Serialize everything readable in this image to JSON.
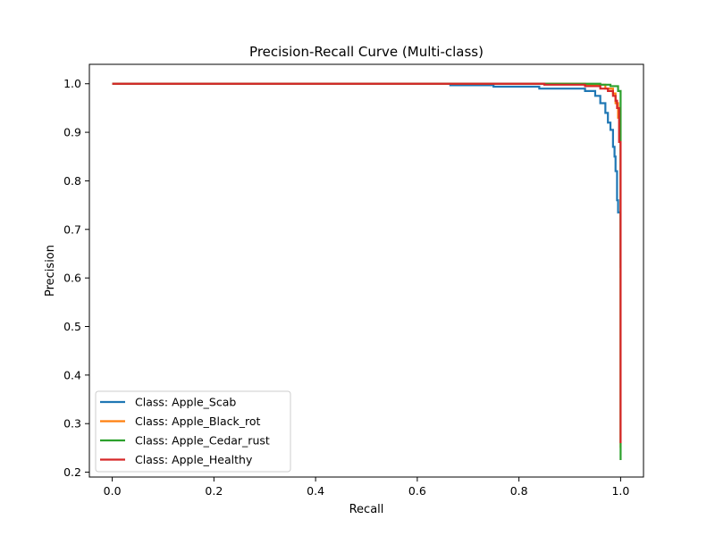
{
  "chart_data": {
    "type": "line",
    "title": "Precision-Recall Curve (Multi-class)",
    "xlabel": "Recall",
    "ylabel": "Precision",
    "xlim": [
      -0.045,
      1.045
    ],
    "ylim": [
      0.19,
      1.04
    ],
    "xticks": [
      0.0,
      0.2,
      0.4,
      0.6,
      0.8,
      1.0
    ],
    "xtick_labels": [
      "0.0",
      "0.2",
      "0.4",
      "0.6",
      "0.8",
      "1.0"
    ],
    "yticks": [
      0.2,
      0.3,
      0.4,
      0.5,
      0.6,
      0.7,
      0.8,
      0.9,
      1.0
    ],
    "ytick_labels": [
      "0.2",
      "0.3",
      "0.4",
      "0.5",
      "0.6",
      "0.7",
      "0.8",
      "0.9",
      "1.0"
    ],
    "grid": false,
    "legend_position": "lower-left",
    "series": [
      {
        "name": "Class: Apple_Scab",
        "color": "#1f77b4",
        "x": [
          0.0,
          0.665,
          0.665,
          0.75,
          0.75,
          0.84,
          0.84,
          0.93,
          0.93,
          0.95,
          0.95,
          0.96,
          0.96,
          0.97,
          0.97,
          0.975,
          0.975,
          0.98,
          0.98,
          0.985,
          0.985,
          0.988,
          0.988,
          0.99,
          0.99,
          0.993,
          0.993,
          0.995,
          0.995,
          1.0,
          1.0
        ],
        "y": [
          1.0,
          1.0,
          0.997,
          0.997,
          0.994,
          0.994,
          0.99,
          0.99,
          0.985,
          0.985,
          0.975,
          0.975,
          0.96,
          0.96,
          0.94,
          0.94,
          0.92,
          0.92,
          0.905,
          0.905,
          0.87,
          0.87,
          0.85,
          0.85,
          0.82,
          0.82,
          0.76,
          0.76,
          0.735,
          0.735,
          0.62
        ]
      },
      {
        "name": "Class: Apple_Black_rot",
        "color": "#ff7f0e",
        "x": [
          0.0,
          0.93,
          0.93,
          0.97,
          0.97,
          0.985,
          0.985,
          0.99,
          0.99,
          0.995,
          0.995,
          0.998,
          0.998,
          1.0,
          1.0
        ],
        "y": [
          1.0,
          1.0,
          0.998,
          0.998,
          0.99,
          0.99,
          0.98,
          0.98,
          0.96,
          0.96,
          0.93,
          0.93,
          0.9,
          0.9,
          0.25
        ]
      },
      {
        "name": "Class: Apple_Cedar_rust",
        "color": "#2ca02c",
        "x": [
          0.0,
          0.96,
          0.96,
          0.98,
          0.98,
          0.995,
          0.995,
          1.0,
          1.0
        ],
        "y": [
          1.0,
          1.0,
          0.998,
          0.998,
          0.995,
          0.995,
          0.985,
          0.985,
          0.225
        ]
      },
      {
        "name": "Class: Apple_Healthy",
        "color": "#d62728",
        "x": [
          0.0,
          0.85,
          0.85,
          0.93,
          0.93,
          0.96,
          0.96,
          0.975,
          0.975,
          0.985,
          0.985,
          0.99,
          0.99,
          0.993,
          0.993,
          0.997,
          0.997,
          1.0,
          1.0
        ],
        "y": [
          1.0,
          1.0,
          0.998,
          0.998,
          0.995,
          0.995,
          0.99,
          0.99,
          0.985,
          0.985,
          0.975,
          0.975,
          0.965,
          0.965,
          0.95,
          0.95,
          0.88,
          0.88,
          0.26
        ]
      }
    ]
  }
}
